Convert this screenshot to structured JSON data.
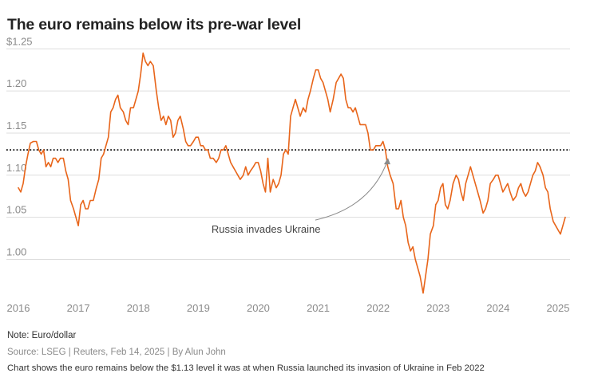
{
  "title": "The euro remains below its pre-war level",
  "footer": {
    "note": "Note: Euro/dollar",
    "source": "Source: LSEG | Reuters, Feb 14, 2025 | By Alun John",
    "description": "Chart shows the euro remains below the $1.13 level it was at when Russia launched its invasion of Ukraine in Feb 2022"
  },
  "colors": {
    "line": "#e8651a",
    "grid": "#dddddd",
    "reference": "#222222",
    "arrow": "#8a8a8a"
  },
  "chart_data": {
    "type": "line",
    "ylabel": "",
    "xlabel": "",
    "ylim": [
      0.955,
      1.255
    ],
    "xlim": [
      2015.8,
      2025.2
    ],
    "y_ticks": [
      {
        "value": 1.25,
        "label": "$1.25"
      },
      {
        "value": 1.2,
        "label": "1.20"
      },
      {
        "value": 1.15,
        "label": "1.15"
      },
      {
        "value": 1.1,
        "label": "1.10"
      },
      {
        "value": 1.05,
        "label": "1.05"
      },
      {
        "value": 1.0,
        "label": "1.00"
      }
    ],
    "x_ticks": [
      {
        "value": 2016,
        "label": "2016"
      },
      {
        "value": 2017,
        "label": "2017"
      },
      {
        "value": 2018,
        "label": "2018"
      },
      {
        "value": 2019,
        "label": "2019"
      },
      {
        "value": 2020,
        "label": "2020"
      },
      {
        "value": 2021,
        "label": "2021"
      },
      {
        "value": 2022,
        "label": "2022"
      },
      {
        "value": 2023,
        "label": "2023"
      },
      {
        "value": 2024,
        "label": "2024"
      },
      {
        "value": 2025,
        "label": "2025"
      }
    ],
    "reference_line": {
      "value": 1.13,
      "style": "dotted"
    },
    "annotation": {
      "text": "Russia invades Ukraine",
      "x": 2022.15,
      "y": 1.13
    },
    "series": [
      {
        "values": [
          [
            2016.0,
            1.085
          ],
          [
            2016.04,
            1.08
          ],
          [
            2016.08,
            1.09
          ],
          [
            2016.12,
            1.11
          ],
          [
            2016.16,
            1.125
          ],
          [
            2016.2,
            1.138
          ],
          [
            2016.25,
            1.14
          ],
          [
            2016.3,
            1.14
          ],
          [
            2016.34,
            1.13
          ],
          [
            2016.38,
            1.125
          ],
          [
            2016.42,
            1.13
          ],
          [
            2016.46,
            1.11
          ],
          [
            2016.5,
            1.115
          ],
          [
            2016.54,
            1.11
          ],
          [
            2016.58,
            1.12
          ],
          [
            2016.62,
            1.12
          ],
          [
            2016.66,
            1.115
          ],
          [
            2016.7,
            1.12
          ],
          [
            2016.75,
            1.12
          ],
          [
            2016.79,
            1.105
          ],
          [
            2016.83,
            1.095
          ],
          [
            2016.87,
            1.07
          ],
          [
            2016.92,
            1.06
          ],
          [
            2016.96,
            1.05
          ],
          [
            2017.0,
            1.04
          ],
          [
            2017.04,
            1.065
          ],
          [
            2017.08,
            1.07
          ],
          [
            2017.12,
            1.06
          ],
          [
            2017.16,
            1.06
          ],
          [
            2017.2,
            1.07
          ],
          [
            2017.25,
            1.07
          ],
          [
            2017.3,
            1.085
          ],
          [
            2017.34,
            1.095
          ],
          [
            2017.38,
            1.12
          ],
          [
            2017.42,
            1.125
          ],
          [
            2017.46,
            1.135
          ],
          [
            2017.5,
            1.145
          ],
          [
            2017.54,
            1.175
          ],
          [
            2017.58,
            1.18
          ],
          [
            2017.62,
            1.19
          ],
          [
            2017.66,
            1.195
          ],
          [
            2017.7,
            1.18
          ],
          [
            2017.75,
            1.175
          ],
          [
            2017.79,
            1.165
          ],
          [
            2017.83,
            1.16
          ],
          [
            2017.87,
            1.18
          ],
          [
            2017.92,
            1.18
          ],
          [
            2017.96,
            1.19
          ],
          [
            2018.0,
            1.2
          ],
          [
            2018.04,
            1.22
          ],
          [
            2018.08,
            1.245
          ],
          [
            2018.12,
            1.235
          ],
          [
            2018.16,
            1.23
          ],
          [
            2018.2,
            1.235
          ],
          [
            2018.25,
            1.23
          ],
          [
            2018.3,
            1.2
          ],
          [
            2018.34,
            1.18
          ],
          [
            2018.38,
            1.165
          ],
          [
            2018.42,
            1.17
          ],
          [
            2018.46,
            1.16
          ],
          [
            2018.5,
            1.17
          ],
          [
            2018.54,
            1.165
          ],
          [
            2018.58,
            1.145
          ],
          [
            2018.62,
            1.15
          ],
          [
            2018.66,
            1.165
          ],
          [
            2018.7,
            1.17
          ],
          [
            2018.75,
            1.155
          ],
          [
            2018.79,
            1.14
          ],
          [
            2018.83,
            1.135
          ],
          [
            2018.87,
            1.135
          ],
          [
            2018.92,
            1.14
          ],
          [
            2018.96,
            1.145
          ],
          [
            2019.0,
            1.145
          ],
          [
            2019.04,
            1.135
          ],
          [
            2019.08,
            1.135
          ],
          [
            2019.12,
            1.13
          ],
          [
            2019.16,
            1.13
          ],
          [
            2019.2,
            1.12
          ],
          [
            2019.25,
            1.12
          ],
          [
            2019.3,
            1.115
          ],
          [
            2019.34,
            1.12
          ],
          [
            2019.38,
            1.13
          ],
          [
            2019.42,
            1.13
          ],
          [
            2019.46,
            1.135
          ],
          [
            2019.5,
            1.125
          ],
          [
            2019.54,
            1.115
          ],
          [
            2019.58,
            1.11
          ],
          [
            2019.62,
            1.105
          ],
          [
            2019.66,
            1.1
          ],
          [
            2019.7,
            1.095
          ],
          [
            2019.75,
            1.1
          ],
          [
            2019.79,
            1.11
          ],
          [
            2019.83,
            1.1
          ],
          [
            2019.87,
            1.105
          ],
          [
            2019.92,
            1.11
          ],
          [
            2019.96,
            1.115
          ],
          [
            2020.0,
            1.115
          ],
          [
            2020.04,
            1.105
          ],
          [
            2020.08,
            1.09
          ],
          [
            2020.12,
            1.08
          ],
          [
            2020.16,
            1.12
          ],
          [
            2020.2,
            1.08
          ],
          [
            2020.25,
            1.095
          ],
          [
            2020.3,
            1.085
          ],
          [
            2020.34,
            1.09
          ],
          [
            2020.38,
            1.1
          ],
          [
            2020.42,
            1.125
          ],
          [
            2020.46,
            1.13
          ],
          [
            2020.5,
            1.125
          ],
          [
            2020.54,
            1.17
          ],
          [
            2020.58,
            1.18
          ],
          [
            2020.62,
            1.19
          ],
          [
            2020.66,
            1.18
          ],
          [
            2020.7,
            1.17
          ],
          [
            2020.75,
            1.18
          ],
          [
            2020.79,
            1.175
          ],
          [
            2020.83,
            1.19
          ],
          [
            2020.87,
            1.2
          ],
          [
            2020.92,
            1.215
          ],
          [
            2020.96,
            1.225
          ],
          [
            2021.0,
            1.225
          ],
          [
            2021.04,
            1.215
          ],
          [
            2021.08,
            1.21
          ],
          [
            2021.12,
            1.2
          ],
          [
            2021.16,
            1.19
          ],
          [
            2021.2,
            1.175
          ],
          [
            2021.25,
            1.19
          ],
          [
            2021.3,
            1.21
          ],
          [
            2021.34,
            1.215
          ],
          [
            2021.38,
            1.22
          ],
          [
            2021.42,
            1.215
          ],
          [
            2021.46,
            1.19
          ],
          [
            2021.5,
            1.18
          ],
          [
            2021.54,
            1.18
          ],
          [
            2021.58,
            1.175
          ],
          [
            2021.62,
            1.18
          ],
          [
            2021.66,
            1.17
          ],
          [
            2021.7,
            1.16
          ],
          [
            2021.75,
            1.16
          ],
          [
            2021.79,
            1.16
          ],
          [
            2021.83,
            1.15
          ],
          [
            2021.87,
            1.13
          ],
          [
            2021.92,
            1.13
          ],
          [
            2021.96,
            1.135
          ],
          [
            2022.0,
            1.135
          ],
          [
            2022.04,
            1.135
          ],
          [
            2022.08,
            1.14
          ],
          [
            2022.12,
            1.13
          ],
          [
            2022.16,
            1.11
          ],
          [
            2022.2,
            1.1
          ],
          [
            2022.25,
            1.09
          ],
          [
            2022.3,
            1.06
          ],
          [
            2022.34,
            1.06
          ],
          [
            2022.38,
            1.07
          ],
          [
            2022.42,
            1.05
          ],
          [
            2022.46,
            1.04
          ],
          [
            2022.5,
            1.02
          ],
          [
            2022.54,
            1.01
          ],
          [
            2022.58,
            1.015
          ],
          [
            2022.62,
            1.0
          ],
          [
            2022.66,
            0.99
          ],
          [
            2022.7,
            0.98
          ],
          [
            2022.75,
            0.96
          ],
          [
            2022.79,
            0.98
          ],
          [
            2022.83,
            1.0
          ],
          [
            2022.87,
            1.03
          ],
          [
            2022.92,
            1.04
          ],
          [
            2022.96,
            1.065
          ],
          [
            2023.0,
            1.07
          ],
          [
            2023.04,
            1.085
          ],
          [
            2023.08,
            1.09
          ],
          [
            2023.12,
            1.065
          ],
          [
            2023.16,
            1.06
          ],
          [
            2023.2,
            1.07
          ],
          [
            2023.25,
            1.09
          ],
          [
            2023.3,
            1.1
          ],
          [
            2023.34,
            1.095
          ],
          [
            2023.38,
            1.08
          ],
          [
            2023.42,
            1.07
          ],
          [
            2023.46,
            1.09
          ],
          [
            2023.5,
            1.1
          ],
          [
            2023.54,
            1.11
          ],
          [
            2023.58,
            1.1
          ],
          [
            2023.62,
            1.09
          ],
          [
            2023.66,
            1.08
          ],
          [
            2023.7,
            1.07
          ],
          [
            2023.75,
            1.055
          ],
          [
            2023.79,
            1.06
          ],
          [
            2023.83,
            1.07
          ],
          [
            2023.87,
            1.09
          ],
          [
            2023.92,
            1.095
          ],
          [
            2023.96,
            1.1
          ],
          [
            2024.0,
            1.1
          ],
          [
            2024.04,
            1.09
          ],
          [
            2024.08,
            1.08
          ],
          [
            2024.12,
            1.085
          ],
          [
            2024.16,
            1.09
          ],
          [
            2024.2,
            1.08
          ],
          [
            2024.25,
            1.07
          ],
          [
            2024.3,
            1.075
          ],
          [
            2024.34,
            1.085
          ],
          [
            2024.38,
            1.09
          ],
          [
            2024.42,
            1.08
          ],
          [
            2024.46,
            1.075
          ],
          [
            2024.5,
            1.08
          ],
          [
            2024.54,
            1.09
          ],
          [
            2024.58,
            1.1
          ],
          [
            2024.62,
            1.105
          ],
          [
            2024.66,
            1.115
          ],
          [
            2024.7,
            1.11
          ],
          [
            2024.75,
            1.1
          ],
          [
            2024.79,
            1.085
          ],
          [
            2024.83,
            1.08
          ],
          [
            2024.87,
            1.06
          ],
          [
            2024.92,
            1.045
          ],
          [
            2024.96,
            1.04
          ],
          [
            2025.0,
            1.035
          ],
          [
            2025.04,
            1.03
          ],
          [
            2025.08,
            1.04
          ],
          [
            2025.12,
            1.05
          ]
        ]
      }
    ]
  }
}
